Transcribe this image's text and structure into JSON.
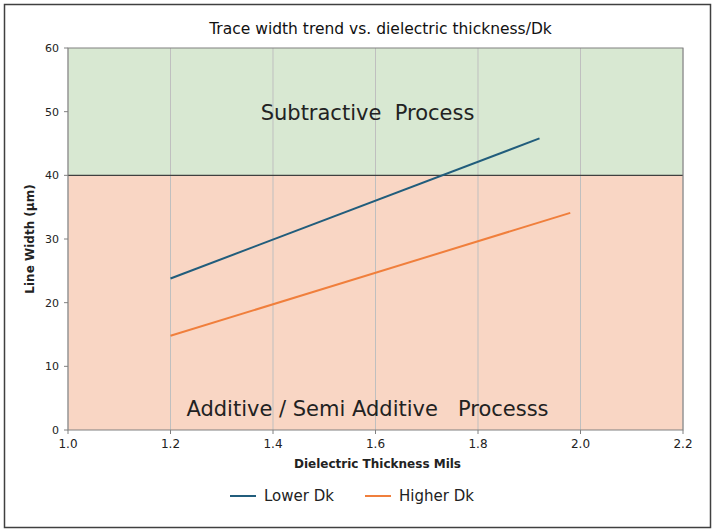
{
  "chart_data": {
    "type": "line",
    "title": "Trace width trend vs. dielectric thickness/Dk",
    "x_label": "Dielectric Thickness Mils",
    "y_label": "Line Width (µm)",
    "xlim": [
      1.0,
      2.2
    ],
    "xticks": [
      {
        "value": 1.0,
        "label": "1.0"
      },
      1.2,
      1.4,
      1.6,
      1.8,
      {
        "value": 2.0,
        "label": "2.0"
      },
      2.2
    ],
    "ylim": [
      0,
      60
    ],
    "yticks": [
      0,
      10,
      20,
      30,
      40,
      50,
      60
    ],
    "grid": true,
    "legend": "bottom",
    "regions": [
      {
        "label": "Subtractive  Process",
        "ymin": 40,
        "ymax": 60,
        "color": "#d8e8d2"
      },
      {
        "label": "Additive / Semi Additive   Processs",
        "ymin": 0,
        "ymax": 40,
        "color": "#f9d6c4"
      }
    ],
    "series": [
      {
        "name": "Lower Dk",
        "color": "#215d7c",
        "x": [
          1.2,
          1.92
        ],
        "values": [
          23.8,
          45.8
        ]
      },
      {
        "name": "Higher Dk",
        "color": "#f07f3c",
        "x": [
          1.2,
          1.98
        ],
        "values": [
          14.8,
          34.1
        ]
      }
    ]
  }
}
